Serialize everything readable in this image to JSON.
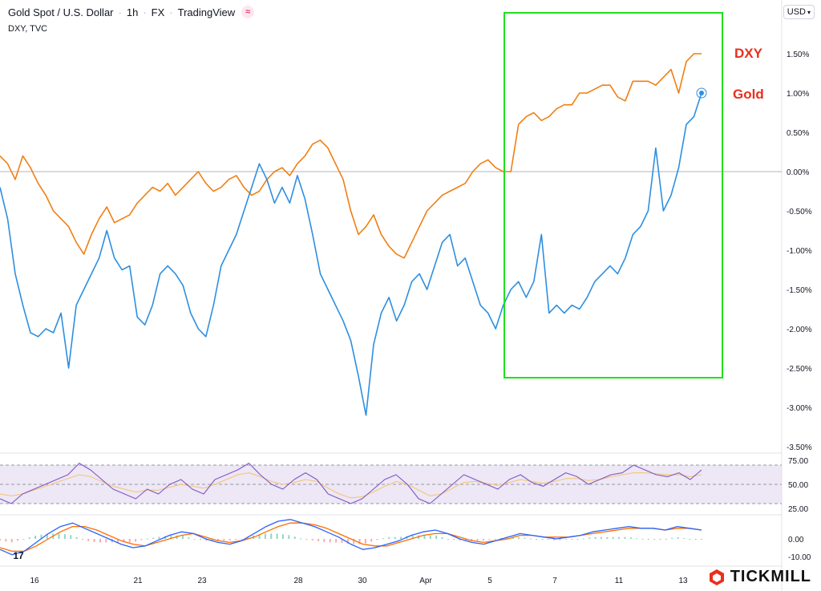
{
  "header": {
    "symbol": "Gold Spot / U.S. Dollar",
    "interval": "1h",
    "exchange": "FX",
    "source": "TradingView",
    "compare_label": "DXY, TVC",
    "currency": "USD"
  },
  "branding": {
    "name": "TICKMILL",
    "accent": "#e8301c"
  },
  "colors": {
    "gold": "#2d8fe0",
    "dxy": "#f07f13",
    "highlight": "#1ee11e",
    "rsi_line": "#7e57c2",
    "rsi_ma": "#f5c46b",
    "rsi_band": "#ede7f6",
    "macd_line": "#2962ff",
    "signal_line": "#ff6d00"
  },
  "chart_data": [
    {
      "type": "line",
      "title": "Gold Spot / U.S. Dollar vs DXY",
      "x_tick_labels": [
        "16",
        "21",
        "23",
        "28",
        "30",
        "Apr",
        "5",
        "7",
        "11",
        "13"
      ],
      "y_tick_labels": [
        "1.50%",
        "1.00%",
        "0.50%",
        "0.00%",
        "-0.50%",
        "-1.00%",
        "-1.50%",
        "-2.00%",
        "-2.50%",
        "-3.00%",
        "-3.50%"
      ],
      "ylim": [
        -3.55,
        1.95
      ],
      "annotations": [
        "DXY",
        "Gold"
      ],
      "series": [
        {
          "name": "DXY",
          "values": [
            0.2,
            0.1,
            -0.1,
            0.2,
            0.05,
            -0.15,
            -0.3,
            -0.5,
            -0.6,
            -0.7,
            -0.9,
            -1.05,
            -0.8,
            -0.6,
            -0.45,
            -0.65,
            -0.6,
            -0.55,
            -0.4,
            -0.3,
            -0.2,
            -0.25,
            -0.15,
            -0.3,
            -0.2,
            -0.1,
            0.0,
            -0.15,
            -0.25,
            -0.2,
            -0.1,
            -0.05,
            -0.2,
            -0.3,
            -0.25,
            -0.1,
            0.0,
            0.05,
            -0.05,
            0.1,
            0.2,
            0.35,
            0.4,
            0.3,
            0.1,
            -0.1,
            -0.5,
            -0.8,
            -0.7,
            -0.55,
            -0.8,
            -0.95,
            -1.05,
            -1.1,
            -0.9,
            -0.7,
            -0.5,
            -0.4,
            -0.3,
            -0.25,
            -0.2,
            -0.15,
            0.0,
            0.1,
            0.15,
            0.05,
            0.0,
            0.0,
            0.6,
            0.7,
            0.75,
            0.65,
            0.7,
            0.8,
            0.85,
            0.85,
            1.0,
            1.0,
            1.05,
            1.1,
            1.1,
            0.95,
            0.9,
            1.15,
            1.15,
            1.15,
            1.1,
            1.2,
            1.3,
            1.0,
            1.4,
            1.5,
            1.5
          ]
        },
        {
          "name": "Gold",
          "values": [
            -0.2,
            -0.6,
            -1.3,
            -1.7,
            -2.05,
            -2.1,
            -2.0,
            -2.05,
            -1.8,
            -2.5,
            -1.7,
            -1.5,
            -1.3,
            -1.1,
            -0.75,
            -1.1,
            -1.25,
            -1.2,
            -1.85,
            -1.95,
            -1.7,
            -1.3,
            -1.2,
            -1.3,
            -1.45,
            -1.8,
            -2.0,
            -2.1,
            -1.7,
            -1.2,
            -1.0,
            -0.8,
            -0.5,
            -0.2,
            0.1,
            -0.1,
            -0.4,
            -0.2,
            -0.4,
            -0.05,
            -0.35,
            -0.8,
            -1.3,
            -1.5,
            -1.7,
            -1.9,
            -2.15,
            -2.6,
            -3.1,
            -2.2,
            -1.8,
            -1.6,
            -1.9,
            -1.7,
            -1.4,
            -1.3,
            -1.5,
            -1.2,
            -0.9,
            -0.8,
            -1.2,
            -1.1,
            -1.4,
            -1.7,
            -1.8,
            -2.0,
            -1.7,
            -1.5,
            -1.4,
            -1.6,
            -1.4,
            -0.8,
            -1.8,
            -1.7,
            -1.8,
            -1.7,
            -1.75,
            -1.6,
            -1.4,
            -1.3,
            -1.2,
            -1.3,
            -1.1,
            -0.8,
            -0.7,
            -0.5,
            0.3,
            -0.5,
            -0.3,
            0.05,
            0.6,
            0.7,
            1.0
          ]
        }
      ]
    },
    {
      "type": "line",
      "title": "RSI",
      "y_tick_labels": [
        "75.00",
        "50.00",
        "25.00"
      ],
      "ylim": [
        20,
        80
      ],
      "bands": [
        70,
        30
      ],
      "series": [
        {
          "name": "RSI",
          "values": [
            35,
            30,
            40,
            45,
            50,
            55,
            60,
            72,
            65,
            55,
            45,
            40,
            35,
            45,
            40,
            50,
            55,
            45,
            40,
            55,
            60,
            65,
            72,
            60,
            50,
            45,
            55,
            62,
            55,
            40,
            35,
            30,
            35,
            45,
            55,
            60,
            50,
            35,
            30,
            40,
            50,
            60,
            55,
            50,
            45,
            55,
            60,
            52,
            48,
            55,
            62,
            58,
            50,
            55,
            60,
            62,
            70,
            65,
            60,
            58,
            62,
            55,
            65
          ]
        },
        {
          "name": "RSI MA",
          "values": [
            40,
            38,
            40,
            44,
            48,
            52,
            56,
            60,
            58,
            53,
            48,
            45,
            42,
            44,
            44,
            47,
            50,
            48,
            46,
            50,
            55,
            60,
            62,
            58,
            53,
            50,
            52,
            55,
            53,
            46,
            40,
            36,
            37,
            42,
            48,
            53,
            50,
            44,
            38,
            40,
            46,
            52,
            53,
            51,
            49,
            52,
            55,
            53,
            51,
            53,
            56,
            56,
            54,
            55,
            58,
            60,
            62,
            62,
            61,
            60,
            60,
            58,
            60
          ]
        }
      ]
    },
    {
      "type": "line",
      "title": "MACD",
      "y_tick_labels": [
        "0.00",
        "-10.00"
      ],
      "ylim": [
        -14,
        14
      ],
      "series": [
        {
          "name": "MACD",
          "values": [
            -6,
            -9,
            -7,
            -2,
            3,
            7,
            9,
            6,
            3,
            0,
            -3,
            -5,
            -4,
            -1,
            2,
            4,
            3,
            0,
            -2,
            -3,
            -1,
            3,
            7,
            10,
            11,
            9,
            7,
            4,
            1,
            -3,
            -6,
            -5,
            -3,
            -1,
            2,
            4,
            5,
            3,
            0,
            -2,
            -3,
            -1,
            1,
            3,
            2,
            1,
            0,
            1,
            2,
            4,
            5,
            6,
            7,
            6,
            6,
            5,
            7,
            6,
            5
          ]
        },
        {
          "name": "Signal",
          "values": [
            -5,
            -7,
            -7,
            -4,
            0,
            4,
            7,
            7,
            5,
            2,
            -1,
            -3,
            -4,
            -2,
            0,
            2,
            3,
            1,
            -1,
            -2,
            -1,
            1,
            4,
            7,
            9,
            9,
            8,
            6,
            3,
            0,
            -3,
            -4,
            -4,
            -2,
            0,
            2,
            3,
            3,
            1,
            -1,
            -2,
            -1,
            0,
            2,
            2,
            1,
            1,
            1,
            2,
            3,
            4,
            5,
            6,
            6,
            6,
            5,
            6,
            6,
            5
          ]
        }
      ]
    }
  ]
}
